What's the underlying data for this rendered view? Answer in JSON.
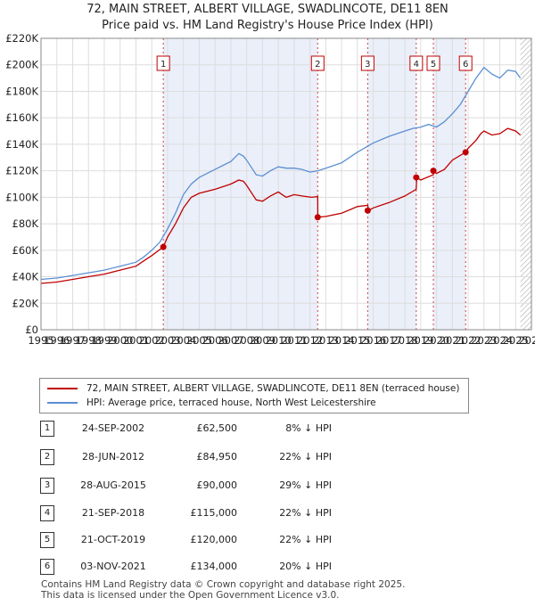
{
  "header": {
    "title": "72, MAIN STREET, ALBERT VILLAGE, SWADLINCOTE, DE11 8EN",
    "subtitle": "Price paid vs. HM Land Registry's House Price Index (HPI)"
  },
  "chart_data": {
    "type": "line",
    "title": "72, MAIN STREET, ALBERT VILLAGE, SWADLINCOTE, DE11 8EN",
    "subtitle": "Price paid vs. HM Land Registry's House Price Index (HPI)",
    "xlim": [
      1995,
      2026
    ],
    "ylim": [
      0,
      220000
    ],
    "x_ticks": [
      1995,
      1996,
      1997,
      1998,
      1999,
      2000,
      2001,
      2002,
      2003,
      2004,
      2005,
      2006,
      2007,
      2008,
      2009,
      2010,
      2011,
      2012,
      2013,
      2014,
      2015,
      2016,
      2017,
      2018,
      2019,
      2020,
      2021,
      2022,
      2023,
      2024,
      2025,
      2026
    ],
    "x_tick_labels": [
      "1995",
      "1996",
      "1997",
      "1998",
      "1999",
      "2000",
      "2001",
      "2002",
      "2003",
      "2004",
      "2005",
      "2006",
      "2007",
      "2008",
      "2009",
      "2010",
      "2011",
      "2012",
      "2013",
      "2014",
      "2015",
      "2016",
      "2017",
      "2018",
      "2019",
      "2020",
      "2021",
      "2022",
      "2023",
      "2024",
      "2025",
      "2026"
    ],
    "y_ticks": [
      0,
      20000,
      40000,
      60000,
      80000,
      100000,
      120000,
      140000,
      160000,
      180000,
      200000,
      220000
    ],
    "y_tick_labels": [
      "£0",
      "£20K",
      "£40K",
      "£60K",
      "£80K",
      "£100K",
      "£120K",
      "£140K",
      "£160K",
      "£180K",
      "£200K",
      "£220K"
    ],
    "series": [
      {
        "name": "72, MAIN STREET, ALBERT VILLAGE, SWADLINCOTE, DE11 8EN (terraced house)",
        "color": "#c00000",
        "x": [
          1995,
          1996,
          1997,
          1998,
          1999,
          2000,
          2001,
          2001.5,
          2002,
          2002.73,
          2003,
          2003.5,
          2004,
          2004.5,
          2005,
          2006,
          2007,
          2007.5,
          2007.8,
          2008,
          2008.6,
          2009,
          2009.5,
          2010,
          2010.5,
          2011,
          2011.5,
          2012.1,
          2012.49,
          2012.5,
          2013,
          2014,
          2015,
          2015.65,
          2015.7,
          2016,
          2017,
          2018,
          2018.72,
          2018.75,
          2019,
          2019.8,
          2019.8,
          2020,
          2020.5,
          2021,
          2021.84,
          2022,
          2022.5,
          2022.8,
          2023,
          2023.5,
          2024,
          2024.5,
          2025,
          2025.3
        ],
        "values": [
          35000,
          36000,
          38000,
          40000,
          42000,
          45000,
          48000,
          52000,
          56000,
          62500,
          70000,
          80000,
          92000,
          100000,
          103000,
          106000,
          110000,
          113000,
          112000,
          109000,
          98000,
          97000,
          101000,
          104000,
          100000,
          102000,
          101000,
          100000,
          100500,
          84950,
          85500,
          88000,
          93000,
          94000,
          90000,
          92000,
          96000,
          101000,
          106000,
          115000,
          113000,
          117000,
          120000,
          118000,
          121000,
          128000,
          134000,
          137000,
          143000,
          148000,
          150000,
          147000,
          148000,
          152000,
          150000,
          147000
        ]
      },
      {
        "name": "HPI: Average price, terraced house, North West Leicestershire",
        "color": "#5b8fd4",
        "x": [
          1995,
          1996,
          1997,
          1998,
          1999,
          2000,
          2001,
          2001.5,
          2002,
          2002.5,
          2003,
          2003.5,
          2004,
          2004.5,
          2005,
          2006,
          2007,
          2007.5,
          2007.8,
          2008,
          2008.6,
          2009,
          2009.5,
          2010,
          2010.5,
          2011,
          2011.5,
          2012,
          2012.5,
          2013,
          2014,
          2015,
          2016,
          2017,
          2018,
          2018.5,
          2019,
          2019.5,
          2020,
          2020.5,
          2021,
          2021.5,
          2022,
          2022.5,
          2023,
          2023.5,
          2024,
          2024.5,
          2025,
          2025.3
        ],
        "values": [
          38000,
          39000,
          41000,
          43000,
          45000,
          48000,
          51000,
          55000,
          60000,
          66000,
          76000,
          88000,
          102000,
          110000,
          115000,
          121000,
          127000,
          133000,
          131000,
          128000,
          117000,
          116000,
          120000,
          123000,
          122000,
          122000,
          121000,
          119000,
          120000,
          122000,
          126000,
          134000,
          141000,
          146000,
          150000,
          152000,
          153000,
          155000,
          153000,
          157000,
          163000,
          170000,
          180000,
          190000,
          198000,
          193000,
          190000,
          196000,
          195000,
          190000
        ]
      }
    ],
    "sales": [
      {
        "label": "1",
        "year": 2002.73,
        "value": 62500
      },
      {
        "label": "2",
        "year": 2012.49,
        "value": 84950
      },
      {
        "label": "3",
        "year": 2015.65,
        "value": 90000
      },
      {
        "label": "4",
        "year": 2018.72,
        "value": 115000
      },
      {
        "label": "5",
        "year": 2019.8,
        "value": 120000
      },
      {
        "label": "6",
        "year": 2021.84,
        "value": 134000
      }
    ]
  },
  "legend": {
    "property_label": "72, MAIN STREET, ALBERT VILLAGE, SWADLINCOTE, DE11 8EN (terraced house)",
    "hpi_label": "HPI: Average price, terraced house, North West Leicestershire",
    "property_color": "#c00000",
    "hpi_color": "#5b8fd4"
  },
  "transactions": [
    {
      "num": "1",
      "date": "24-SEP-2002",
      "price": "£62,500",
      "hpi": "8% ↓ HPI"
    },
    {
      "num": "2",
      "date": "28-JUN-2012",
      "price": "£84,950",
      "hpi": "22% ↓ HPI"
    },
    {
      "num": "3",
      "date": "28-AUG-2015",
      "price": "£90,000",
      "hpi": "29% ↓ HPI"
    },
    {
      "num": "4",
      "date": "21-SEP-2018",
      "price": "£115,000",
      "hpi": "22% ↓ HPI"
    },
    {
      "num": "5",
      "date": "21-OCT-2019",
      "price": "£120,000",
      "hpi": "22% ↓ HPI"
    },
    {
      "num": "6",
      "date": "03-NOV-2021",
      "price": "£134,000",
      "hpi": "20% ↓ HPI"
    }
  ],
  "footer": {
    "line1": "Contains HM Land Registry data © Crown copyright and database right 2025.",
    "line2": "This data is licensed under the Open Government Licence v3.0."
  }
}
